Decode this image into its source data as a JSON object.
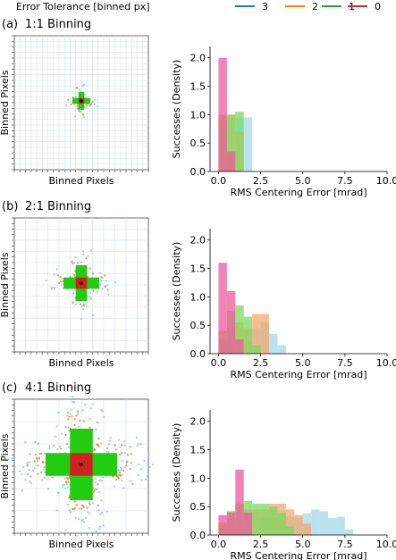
{
  "legend": {
    "title": "Error Tolerance [binned px]",
    "entries": [
      {
        "label": "3",
        "color": "#1f77b4"
      },
      {
        "label": "2",
        "color": "#ff7f0e"
      },
      {
        "label": "1",
        "color": "#2ca02c"
      },
      {
        "label": "0",
        "color": "#d62728"
      }
    ]
  },
  "colors": {
    "series_3": "#a6d8ea",
    "series_2": "#f3a870",
    "series_1": "#7ed860",
    "series_0": "#ee5a9a",
    "cluster_3": "#7fc7e6",
    "cluster_2": "#f07f2a",
    "cluster_1": "#22cc11",
    "cluster_0": "#d02020"
  },
  "panels": [
    {
      "tag": "(a)",
      "title": "1:1 Binning",
      "xlabel": "Binned Pixels",
      "ylabel": "Binned Pixels"
    },
    {
      "tag": "(b)",
      "title": "2:1 Binning",
      "xlabel": "Binned Pixels",
      "ylabel": "Binned Pixels"
    },
    {
      "tag": "(c)",
      "title": "4:1 Binning",
      "xlabel": "Binned Pixels",
      "ylabel": "Binned Pixels"
    }
  ],
  "chart_data": [
    {
      "type": "bar",
      "subtype": "histogram",
      "panel": "(a)",
      "xlabel": "RMS Centering Error [mrad]",
      "ylabel": "Successes (Density)",
      "xlim": [
        -0.5,
        10.0
      ],
      "ylim": [
        0,
        2.2
      ],
      "xticks": [
        0.0,
        2.5,
        5.0,
        7.5,
        10.0
      ],
      "yticks": [
        0.0,
        0.5,
        1.0,
        1.5,
        2.0
      ],
      "bin_width": 0.5,
      "series": [
        {
          "name": "3",
          "bins": [
            [
              1.5,
              0.95
            ],
            [
              1.0,
              0.95
            ],
            [
              0.5,
              0.25
            ]
          ]
        },
        {
          "name": "2",
          "bins": [
            [
              0.5,
              1.0
            ],
            [
              0.0,
              1.0
            ],
            [
              1.0,
              0.7
            ]
          ]
        },
        {
          "name": "1",
          "bins": [
            [
              1.0,
              1.05
            ],
            [
              0.5,
              1.0
            ],
            [
              0.0,
              0.95
            ]
          ]
        },
        {
          "name": "0",
          "bins": [
            [
              0.0,
              2.0
            ],
            [
              0.5,
              0.35
            ]
          ]
        }
      ]
    },
    {
      "type": "bar",
      "subtype": "histogram",
      "panel": "(b)",
      "xlabel": "RMS Centering Error [mrad]",
      "ylabel": "Successes (Density)",
      "xlim": [
        -0.5,
        10.0
      ],
      "ylim": [
        0,
        2.2
      ],
      "xticks": [
        0.0,
        2.5,
        5.0,
        7.5,
        10.0
      ],
      "yticks": [
        0.0,
        0.5,
        1.0,
        1.5,
        2.0
      ],
      "bin_width": 0.5,
      "series": [
        {
          "name": "3",
          "bins": [
            [
              2.0,
              0.45
            ],
            [
              2.5,
              0.55
            ],
            [
              3.0,
              0.35
            ],
            [
              3.5,
              0.15
            ],
            [
              1.5,
              0.2
            ]
          ]
        },
        {
          "name": "2",
          "bins": [
            [
              0.5,
              0.45
            ],
            [
              1.0,
              0.55
            ],
            [
              1.5,
              0.45
            ],
            [
              2.0,
              0.7
            ],
            [
              2.5,
              0.7
            ],
            [
              0.0,
              0.25
            ]
          ]
        },
        {
          "name": "1",
          "bins": [
            [
              0.0,
              0.4
            ],
            [
              0.5,
              0.75
            ],
            [
              1.0,
              0.85
            ],
            [
              1.5,
              0.65
            ],
            [
              2.0,
              0.15
            ]
          ]
        },
        {
          "name": "0",
          "bins": [
            [
              0.0,
              1.6
            ],
            [
              0.5,
              1.1
            ],
            [
              1.0,
              0.25
            ]
          ]
        }
      ]
    },
    {
      "type": "bar",
      "subtype": "histogram",
      "panel": "(c)",
      "xlabel": "RMS Centering Error [mrad]",
      "ylabel": "Successes (Density)",
      "xlim": [
        -0.5,
        10.0
      ],
      "ylim": [
        0,
        2.2
      ],
      "xticks": [
        0.0,
        2.5,
        5.0,
        7.5,
        10.0
      ],
      "yticks": [
        0.0,
        0.5,
        1.0,
        1.5,
        2.0
      ],
      "bin_width": 0.5,
      "series": [
        {
          "name": "3",
          "bins": [
            [
              2.5,
              0.3
            ],
            [
              3.0,
              0.3
            ],
            [
              3.5,
              0.32
            ],
            [
              4.0,
              0.32
            ],
            [
              4.5,
              0.3
            ],
            [
              5.0,
              0.38
            ],
            [
              5.5,
              0.45
            ],
            [
              6.0,
              0.42
            ],
            [
              6.5,
              0.3
            ],
            [
              7.0,
              0.32
            ],
            [
              7.5,
              0.1
            ]
          ]
        },
        {
          "name": "2",
          "bins": [
            [
              0.0,
              0.22
            ],
            [
              0.5,
              0.3
            ],
            [
              1.0,
              0.3
            ],
            [
              1.5,
              0.45
            ],
            [
              2.0,
              0.45
            ],
            [
              2.5,
              0.45
            ],
            [
              3.0,
              0.55
            ],
            [
              3.5,
              0.55
            ],
            [
              4.0,
              0.45
            ],
            [
              4.5,
              0.35
            ],
            [
              5.0,
              0.2
            ]
          ]
        },
        {
          "name": "1",
          "bins": [
            [
              0.0,
              0.18
            ],
            [
              0.5,
              0.42
            ],
            [
              1.0,
              0.55
            ],
            [
              1.5,
              0.6
            ],
            [
              2.0,
              0.55
            ],
            [
              2.5,
              0.55
            ],
            [
              3.0,
              0.5
            ],
            [
              3.5,
              0.4
            ],
            [
              4.0,
              0.15
            ]
          ]
        },
        {
          "name": "0",
          "bins": [
            [
              0.0,
              0.35
            ],
            [
              0.5,
              0.4
            ],
            [
              1.0,
              1.15
            ],
            [
              1.5,
              0.4
            ]
          ]
        }
      ]
    }
  ]
}
